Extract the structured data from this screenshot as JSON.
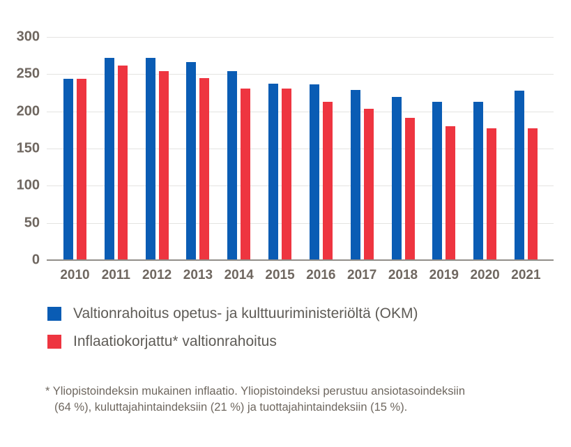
{
  "chart_data": {
    "type": "bar",
    "title": "",
    "xlabel": "",
    "ylabel": "",
    "categories": [
      "2010",
      "2011",
      "2012",
      "2013",
      "2014",
      "2015",
      "2016",
      "2017",
      "2018",
      "2019",
      "2020",
      "2021"
    ],
    "series": [
      {
        "name": "Valtionrahoitus opetus- ja kulttuuriministeriöltä (OKM)",
        "color": "#0a5cb4",
        "values": [
          244,
          272,
          272,
          266,
          254,
          237,
          236,
          229,
          219,
          213,
          213,
          228
        ]
      },
      {
        "name": "Inflaatiokorjattu* valtionrahoitus",
        "color": "#ee3540",
        "values": [
          244,
          262,
          254,
          245,
          231,
          231,
          213,
          203,
          191,
          180,
          177,
          177
        ]
      }
    ],
    "ylim": [
      0,
      300
    ],
    "yticks": [
      300,
      250,
      200,
      150,
      100,
      50,
      0
    ],
    "grid": true,
    "legend_position": "bottom-left"
  },
  "legend": {
    "items": [
      {
        "label": "Valtionrahoitus opetus- ja kulttuuriministeriöltä (OKM)",
        "color": "#0a5cb4"
      },
      {
        "label": "Inflaatiokorjattu* valtionrahoitus",
        "color": "#ee3540"
      }
    ]
  },
  "footnote": {
    "line1": "* Yliopistoindeksin mukainen inflaatio. Yliopistoindeksi perustuu ansiotasoindeksiin",
    "line2": "(64 %), kuluttajahintaindeksiin (21 %) ja tuottajahintaindeksiin (15 %)."
  },
  "colors": {
    "series_blue": "#0a5cb4",
    "series_red": "#ee3540",
    "axis_text": "#6f6760",
    "legend_text": "#5e5b56",
    "footnote_text": "#6e675f",
    "gridline": "#e4e3e1",
    "baseline": "#918e89",
    "background": "#ffffff"
  }
}
